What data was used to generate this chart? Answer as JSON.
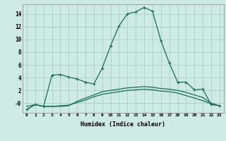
{
  "xlabel": "Humidex (Indice chaleur)",
  "x_values": [
    0,
    1,
    2,
    3,
    4,
    5,
    6,
    7,
    8,
    9,
    10,
    11,
    12,
    13,
    14,
    15,
    16,
    17,
    18,
    19,
    20,
    21,
    22,
    23
  ],
  "line1": [
    -1.0,
    -0.2,
    -0.5,
    4.4,
    4.5,
    4.1,
    3.8,
    3.3,
    3.0,
    5.5,
    9.0,
    12.1,
    14.0,
    14.3,
    15.0,
    14.4,
    9.8,
    6.3,
    3.3,
    3.3,
    2.1,
    2.2,
    -0.2,
    -0.4
  ],
  "line2": [
    -0.5,
    -0.2,
    -0.5,
    -0.5,
    -0.5,
    -0.4,
    0.3,
    0.8,
    1.3,
    1.8,
    2.0,
    2.2,
    2.4,
    2.5,
    2.6,
    2.5,
    2.3,
    2.2,
    2.0,
    1.7,
    1.3,
    0.9,
    0.0,
    -0.4
  ],
  "line3": [
    -1.0,
    -0.2,
    -0.5,
    -0.5,
    -0.4,
    -0.3,
    0.1,
    0.5,
    1.0,
    1.4,
    1.6,
    1.8,
    2.0,
    2.1,
    2.2,
    2.1,
    1.9,
    1.8,
    1.6,
    1.2,
    0.8,
    0.4,
    -0.1,
    -0.4
  ],
  "line_color": "#1a6b5a",
  "bg_color": "#ceeae4",
  "grid_color": "#aacfc8",
  "ylim": [
    -1.5,
    15.5
  ],
  "yticks": [
    0,
    2,
    4,
    6,
    8,
    10,
    12,
    14
  ],
  "ytick_labels": [
    "-0",
    "2",
    "4",
    "6",
    "8",
    "10",
    "12",
    "14"
  ],
  "marker": "+"
}
